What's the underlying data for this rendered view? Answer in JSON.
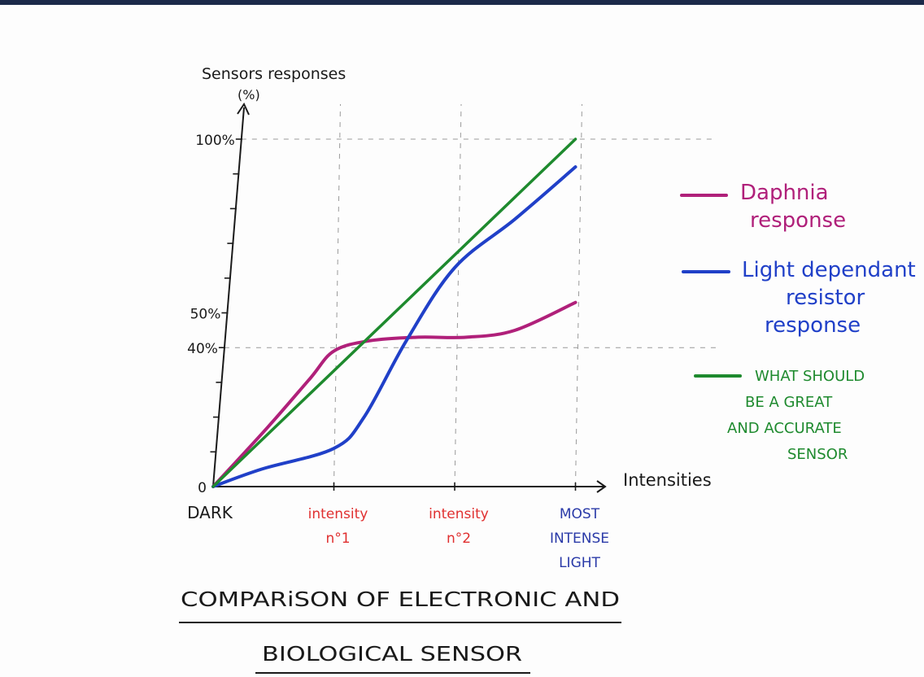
{
  "chart_data": {
    "type": "line",
    "title": "COMPARISON OF ELECTRONIC AND BIOLOGICAL SENSOR",
    "title_lines": [
      "COMPARiSON OF ELECTRONIC AND",
      "BIOLOGICAL SENSOR"
    ],
    "xlabel": "Intensities",
    "ylabel_lines": [
      "Sensors responses",
      "(%)"
    ],
    "categories": [
      {
        "lines": [
          "DARK"
        ],
        "color": "#1a1a1a"
      },
      {
        "lines": [
          "intensity",
          "n°1"
        ],
        "color": "#e03030"
      },
      {
        "lines": [
          "intensity",
          "n°2"
        ],
        "color": "#e03030"
      },
      {
        "lines": [
          "MOST",
          "INTENSE",
          "LIGHT"
        ],
        "color": "#2a3aa8"
      }
    ],
    "y_ticks": [
      {
        "value": 0,
        "label": "0"
      },
      {
        "value": 40,
        "label": "40%"
      },
      {
        "value": 50,
        "label": "50%"
      },
      {
        "value": 100,
        "label": "100%"
      }
    ],
    "ylim": [
      0,
      100
    ],
    "xlim": [
      0,
      3
    ],
    "guides": [
      {
        "axis": "y",
        "value": 40
      },
      {
        "axis": "y",
        "value": 100
      },
      {
        "axis": "x",
        "value": 1
      },
      {
        "axis": "x",
        "value": 2
      },
      {
        "axis": "x",
        "value": 3
      }
    ],
    "series": [
      {
        "name_lines": [
          "Daphnia",
          "response"
        ],
        "color": "#b0207a",
        "x": [
          0,
          0.45,
          0.8,
          1.0,
          1.3,
          1.7,
          2.1,
          2.5,
          3.0
        ],
        "y": [
          0,
          17,
          31,
          39,
          42,
          43,
          43,
          45,
          53
        ]
      },
      {
        "name_lines": [
          "Light dependant",
          "resistor",
          "response"
        ],
        "color": "#2040c8",
        "x": [
          0,
          0.4,
          1.0,
          1.25,
          1.6,
          2.0,
          2.5,
          3.0
        ],
        "y": [
          0,
          5,
          11,
          20,
          42,
          63,
          77,
          92
        ]
      },
      {
        "name_lines": [
          "WHAT SHOULD",
          "BE A GREAT",
          "AND ACCURATE",
          "SENSOR"
        ],
        "color": "#1e8a2e",
        "x": [
          0,
          3.0
        ],
        "y": [
          0,
          100
        ]
      }
    ]
  }
}
